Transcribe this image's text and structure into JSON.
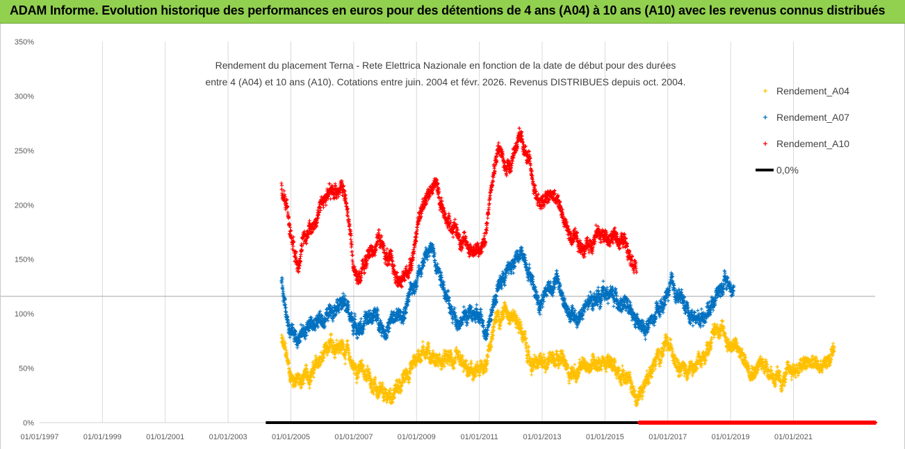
{
  "banner": {
    "title": "ADAM Informe. Evolution historique des performances en euros pour des détentions de 4 ans (A04) à 10 ans (A10) avec les revenus connus distribués"
  },
  "chart_data": {
    "type": "scatter",
    "title_line1": "Rendement du placement Terna - Rete Elettrica Nazionale en fonction de la date de début pour des durées",
    "title_line2": "entre 4 (A04) et 10 ans (A10).  Cotations entre juin. 2004 et févr. 2026. Revenus DISTRIBUES depuis oct. 2004.",
    "xlabel": "",
    "ylabel": "",
    "x_range_years": [
      1997.0,
      2023.6
    ],
    "ylim": [
      0,
      350
    ],
    "y_ticks": [
      "0%",
      "50%",
      "100%",
      "150%",
      "200%",
      "250%",
      "300%",
      "350%"
    ],
    "x_ticks": [
      "01/01/1997",
      "01/01/1999",
      "01/01/2001",
      "01/01/2003",
      "01/01/2005",
      "01/01/2007",
      "01/01/2009",
      "01/01/2011",
      "01/01/2013",
      "01/01/2015",
      "01/01/2017",
      "01/01/2019",
      "01/01/2021"
    ],
    "reference_line_value_pct": 116,
    "legend_position": "top-right",
    "series": [
      {
        "name": "Rendement_A04",
        "color": "#ffc000",
        "x_start": 2004.7,
        "x_end": 2022.3,
        "keypoints": [
          [
            2004.7,
            75
          ],
          [
            2004.85,
            62
          ],
          [
            2005.0,
            42
          ],
          [
            2005.3,
            38
          ],
          [
            2005.6,
            45
          ],
          [
            2005.9,
            55
          ],
          [
            2006.2,
            65
          ],
          [
            2006.5,
            75
          ],
          [
            2006.8,
            65
          ],
          [
            2007.0,
            50
          ],
          [
            2007.3,
            48
          ],
          [
            2007.6,
            38
          ],
          [
            2007.8,
            25
          ],
          [
            2008.0,
            22
          ],
          [
            2008.3,
            28
          ],
          [
            2008.6,
            40
          ],
          [
            2008.9,
            55
          ],
          [
            2009.2,
            68
          ],
          [
            2009.5,
            62
          ],
          [
            2009.8,
            55
          ],
          [
            2010.1,
            58
          ],
          [
            2010.4,
            52
          ],
          [
            2010.7,
            45
          ],
          [
            2011.0,
            45
          ],
          [
            2011.2,
            55
          ],
          [
            2011.4,
            80
          ],
          [
            2011.6,
            100
          ],
          [
            2011.9,
            105
          ],
          [
            2012.2,
            95
          ],
          [
            2012.4,
            80
          ],
          [
            2012.6,
            55
          ],
          [
            2012.9,
            52
          ],
          [
            2013.2,
            60
          ],
          [
            2013.5,
            65
          ],
          [
            2013.8,
            48
          ],
          [
            2014.1,
            45
          ],
          [
            2014.4,
            52
          ],
          [
            2014.7,
            58
          ],
          [
            2015.0,
            55
          ],
          [
            2015.3,
            50
          ],
          [
            2015.6,
            45
          ],
          [
            2015.9,
            30
          ],
          [
            2016.0,
            18
          ],
          [
            2016.3,
            40
          ],
          [
            2016.6,
            55
          ],
          [
            2016.9,
            70
          ],
          [
            2017.2,
            65
          ],
          [
            2017.5,
            50
          ],
          [
            2017.8,
            48
          ],
          [
            2018.1,
            55
          ],
          [
            2018.4,
            80
          ],
          [
            2018.6,
            90
          ],
          [
            2018.9,
            75
          ],
          [
            2019.2,
            68
          ],
          [
            2019.5,
            55
          ],
          [
            2019.8,
            50
          ],
          [
            2020.1,
            55
          ],
          [
            2020.4,
            42
          ],
          [
            2020.6,
            35
          ],
          [
            2020.9,
            48
          ],
          [
            2021.2,
            50
          ],
          [
            2021.5,
            55
          ],
          [
            2021.8,
            50
          ],
          [
            2022.0,
            55
          ],
          [
            2022.3,
            60
          ]
        ]
      },
      {
        "name": "Rendement_A07",
        "color": "#0070c0",
        "x_start": 2004.7,
        "x_end": 2019.1,
        "keypoints": [
          [
            2004.7,
            130
          ],
          [
            2004.85,
            100
          ],
          [
            2005.0,
            85
          ],
          [
            2005.3,
            80
          ],
          [
            2005.6,
            90
          ],
          [
            2005.9,
            92
          ],
          [
            2006.2,
            100
          ],
          [
            2006.5,
            115
          ],
          [
            2006.8,
            105
          ],
          [
            2007.0,
            90
          ],
          [
            2007.3,
            88
          ],
          [
            2007.6,
            100
          ],
          [
            2007.8,
            95
          ],
          [
            2008.0,
            85
          ],
          [
            2008.3,
            95
          ],
          [
            2008.6,
            100
          ],
          [
            2008.9,
            125
          ],
          [
            2009.2,
            150
          ],
          [
            2009.5,
            160
          ],
          [
            2009.8,
            135
          ],
          [
            2010.1,
            100
          ],
          [
            2010.4,
            95
          ],
          [
            2010.7,
            100
          ],
          [
            2011.0,
            95
          ],
          [
            2011.2,
            85
          ],
          [
            2011.4,
            105
          ],
          [
            2011.6,
            125
          ],
          [
            2011.9,
            140
          ],
          [
            2012.2,
            150
          ],
          [
            2012.4,
            155
          ],
          [
            2012.6,
            140
          ],
          [
            2012.9,
            110
          ],
          [
            2013.2,
            125
          ],
          [
            2013.5,
            130
          ],
          [
            2013.8,
            100
          ],
          [
            2014.1,
            95
          ],
          [
            2014.4,
            105
          ],
          [
            2014.7,
            115
          ],
          [
            2015.0,
            120
          ],
          [
            2015.3,
            115
          ],
          [
            2015.6,
            110
          ],
          [
            2015.9,
            95
          ],
          [
            2016.2,
            85
          ],
          [
            2016.5,
            92
          ],
          [
            2016.8,
            105
          ],
          [
            2017.1,
            125
          ],
          [
            2017.4,
            115
          ],
          [
            2017.7,
            100
          ],
          [
            2018.0,
            95
          ],
          [
            2018.3,
            105
          ],
          [
            2018.6,
            120
          ],
          [
            2018.9,
            130
          ],
          [
            2019.1,
            120
          ]
        ]
      },
      {
        "name": "Rendement_A10",
        "color": "#ff0000",
        "x_start": 2004.7,
        "x_end": 2016.0,
        "keypoints": [
          [
            2004.7,
            215
          ],
          [
            2004.85,
            205
          ],
          [
            2005.0,
            175
          ],
          [
            2005.2,
            150
          ],
          [
            2005.4,
            165
          ],
          [
            2005.6,
            180
          ],
          [
            2005.8,
            185
          ],
          [
            2006.0,
            205
          ],
          [
            2006.3,
            210
          ],
          [
            2006.6,
            220
          ],
          [
            2006.8,
            195
          ],
          [
            2006.9,
            170
          ],
          [
            2007.0,
            140
          ],
          [
            2007.2,
            135
          ],
          [
            2007.5,
            155
          ],
          [
            2007.8,
            170
          ],
          [
            2008.0,
            155
          ],
          [
            2008.3,
            140
          ],
          [
            2008.5,
            125
          ],
          [
            2008.8,
            145
          ],
          [
            2009.0,
            175
          ],
          [
            2009.3,
            210
          ],
          [
            2009.6,
            220
          ],
          [
            2009.9,
            190
          ],
          [
            2010.2,
            180
          ],
          [
            2010.5,
            165
          ],
          [
            2010.8,
            160
          ],
          [
            2011.0,
            155
          ],
          [
            2011.2,
            170
          ],
          [
            2011.4,
            230
          ],
          [
            2011.6,
            255
          ],
          [
            2011.8,
            235
          ],
          [
            2012.0,
            240
          ],
          [
            2012.2,
            260
          ],
          [
            2012.4,
            255
          ],
          [
            2012.6,
            235
          ],
          [
            2012.8,
            210
          ],
          [
            2013.0,
            200
          ],
          [
            2013.3,
            210
          ],
          [
            2013.6,
            195
          ],
          [
            2013.9,
            170
          ],
          [
            2014.2,
            160
          ],
          [
            2014.5,
            165
          ],
          [
            2014.8,
            175
          ],
          [
            2015.1,
            168
          ],
          [
            2015.4,
            170
          ],
          [
            2015.7,
            165
          ],
          [
            2016.0,
            145
          ]
        ]
      },
      {
        "name": "0,0%",
        "color": "#000000",
        "type": "line",
        "x_start": 2004.2,
        "x_end": 2016.1,
        "value": 0
      }
    ],
    "zero_markers_A10": {
      "color": "#ff0000",
      "x_start": 2016.1,
      "x_end": 2023.6,
      "value": 0
    }
  }
}
